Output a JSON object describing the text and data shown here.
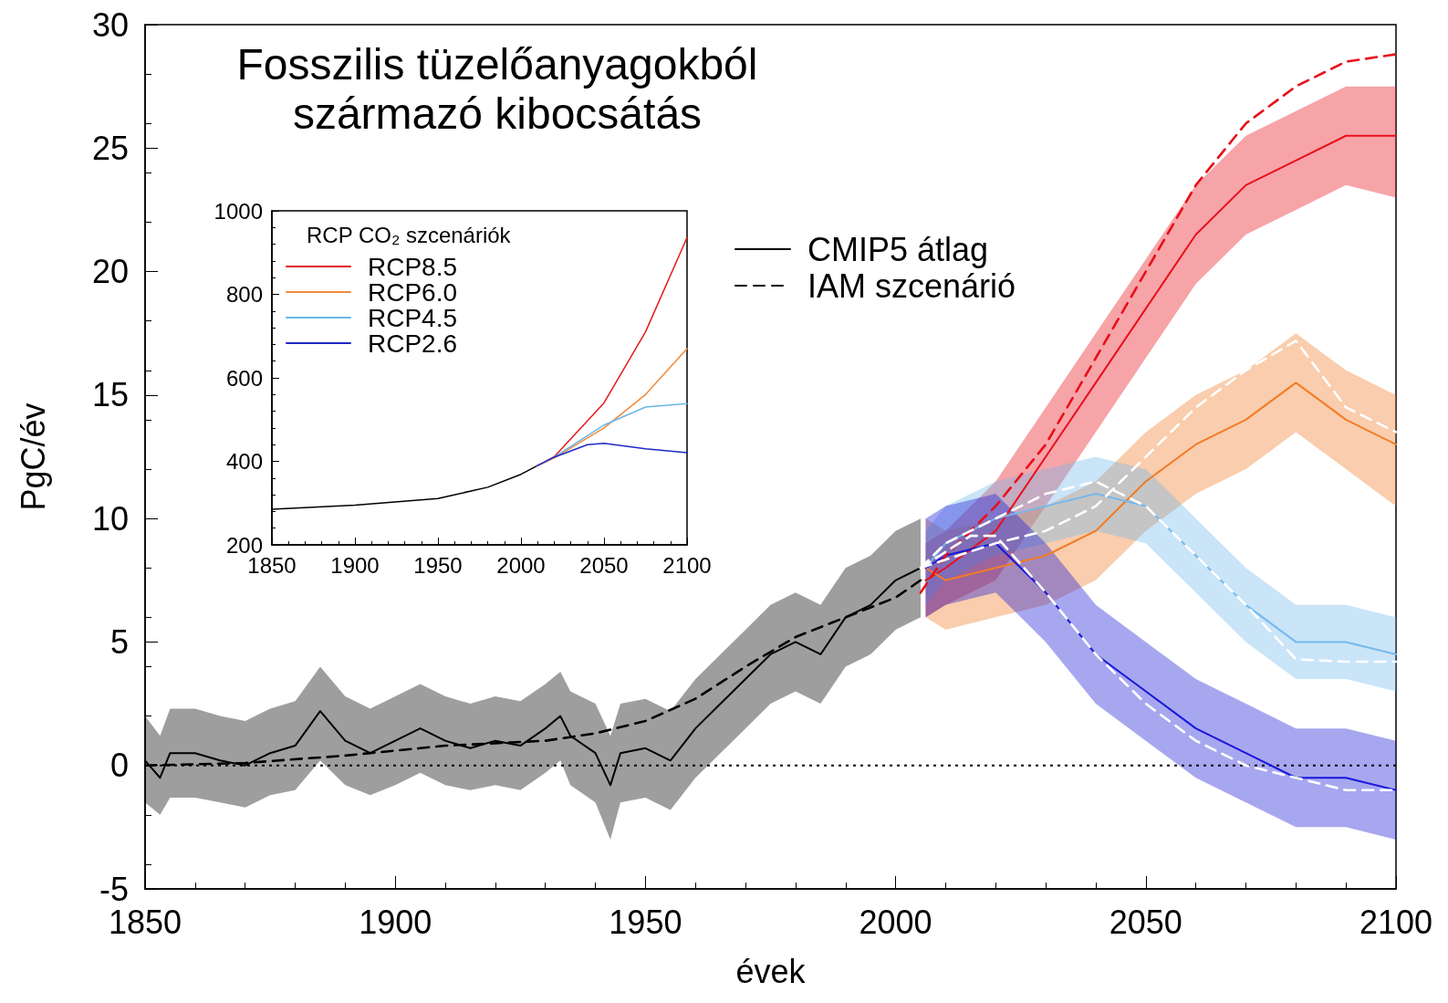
{
  "chart_data": [
    {
      "type": "line",
      "title": "Fosszilis tüzelőanyagokból\nszármazó kibocsátás",
      "xlabel": "évek",
      "ylabel": "PgC/év",
      "xlim": [
        1850,
        2100
      ],
      "xticks": [
        1850,
        1900,
        1950,
        2000,
        2050,
        2100
      ],
      "ylim": [
        -5,
        30
      ],
      "yticks": [
        -5,
        0,
        5,
        10,
        15,
        20,
        25,
        30
      ],
      "legend": "top",
      "marker": "none",
      "ref_lines": [
        {
          "axis": "y",
          "value": 0,
          "line_style": "dotted",
          "color": "#000000"
        }
      ],
      "series": [
        {
          "name": "CMIP5 átlag",
          "color": "#000000",
          "line_style": "solid",
          "x": [
            1850,
            1853,
            1855,
            1860,
            1865,
            1870,
            1875,
            1880,
            1885,
            1890,
            1895,
            1900,
            1905,
            1910,
            1915,
            1920,
            1925,
            1930,
            1933,
            1935,
            1940,
            1943,
            1945,
            1950,
            1955,
            1960,
            1965,
            1970,
            1975,
            1980,
            1985,
            1990,
            1995,
            2000,
            2005
          ],
          "values": [
            0.2,
            -0.5,
            0.5,
            0.5,
            0.2,
            0,
            0.5,
            0.8,
            2.2,
            1,
            0.5,
            1,
            1.5,
            1,
            0.7,
            1,
            0.8,
            1.5,
            2,
            1.2,
            0.5,
            -0.8,
            0.5,
            0.7,
            0.2,
            1.5,
            2.5,
            3.5,
            4.5,
            5,
            4.5,
            6,
            6.5,
            7.5,
            8
          ],
          "lower": [
            -1.5,
            -2,
            -1.3,
            -1.3,
            -1.5,
            -1.7,
            -1.2,
            -1,
            0.2,
            -0.8,
            -1.2,
            -0.8,
            -0.3,
            -0.8,
            -1,
            -0.8,
            -1,
            -0.3,
            0.2,
            -0.8,
            -1.5,
            -3,
            -1.5,
            -1.3,
            -1.8,
            -0.5,
            0.5,
            1.5,
            2.5,
            3,
            2.5,
            4,
            4.5,
            5.5,
            6
          ],
          "upper": [
            2,
            1.2,
            2.3,
            2.3,
            2,
            1.8,
            2.3,
            2.6,
            4,
            2.8,
            2.3,
            2.8,
            3.3,
            2.8,
            2.5,
            2.8,
            2.6,
            3.3,
            3.8,
            3,
            2.5,
            1.2,
            2.5,
            2.7,
            2.2,
            3.5,
            4.5,
            5.5,
            6.5,
            7,
            6.5,
            8,
            8.5,
            9.5,
            10
          ]
        },
        {
          "color": "#e8101a",
          "line_style": "solid",
          "x": [
            2006,
            2010,
            2020,
            2030,
            2040,
            2050,
            2060,
            2070,
            2080,
            2090,
            2100
          ],
          "values": [
            7.5,
            8,
            9.5,
            12.5,
            15.5,
            18.5,
            21.5,
            23.5,
            24.5,
            25.5,
            25.5
          ],
          "lower": [
            6,
            6.5,
            7.5,
            10.5,
            13.5,
            16.5,
            19.5,
            21.5,
            22.5,
            23.5,
            23
          ],
          "upper": [
            9,
            9.5,
            11.5,
            14.5,
            17.5,
            20.5,
            23.5,
            25.5,
            26.5,
            27.5,
            27.5
          ]
        },
        {
          "color": "#f07c28",
          "line_style": "solid",
          "x": [
            2006,
            2010,
            2020,
            2030,
            2040,
            2050,
            2060,
            2070,
            2080,
            2090,
            2100
          ],
          "values": [
            8,
            7.5,
            8,
            8.5,
            9.5,
            11.5,
            13,
            14,
            15.5,
            14,
            13
          ],
          "lower": [
            6,
            5.5,
            6,
            6.5,
            7.5,
            9.5,
            11,
            12,
            13.5,
            12,
            10.5
          ],
          "upper": [
            10,
            9.5,
            10,
            10.5,
            11.5,
            13.5,
            15,
            16,
            17.5,
            16,
            15
          ]
        },
        {
          "color": "#74b8ec",
          "line_style": "solid",
          "x": [
            2006,
            2010,
            2020,
            2030,
            2040,
            2050,
            2060,
            2070,
            2080,
            2090,
            2100
          ],
          "values": [
            8,
            9,
            10,
            10.5,
            11,
            10.5,
            8.5,
            6.5,
            5,
            5,
            4.5
          ],
          "lower": [
            6.5,
            7.5,
            8.5,
            9,
            9.5,
            9,
            7,
            5,
            3.5,
            3.5,
            3
          ],
          "upper": [
            9.5,
            10.5,
            11.5,
            12,
            12.5,
            12,
            10,
            8,
            6.5,
            6.5,
            6
          ]
        },
        {
          "color": "#1818d8",
          "line_style": "solid",
          "x": [
            2006,
            2010,
            2020,
            2025,
            2030,
            2040,
            2050,
            2060,
            2070,
            2080,
            2090,
            2100
          ],
          "values": [
            8,
            8.5,
            9,
            8,
            7,
            4.5,
            3,
            1.5,
            0.5,
            -0.5,
            -0.5,
            -1
          ],
          "lower": [
            6,
            6.5,
            7,
            6,
            5,
            2.5,
            1,
            -0.5,
            -1.5,
            -2.5,
            -2.5,
            -3
          ],
          "upper": [
            10,
            10.5,
            11,
            10,
            9,
            6.5,
            5,
            3.5,
            2.5,
            1.5,
            1.5,
            1
          ]
        },
        {
          "name": "IAM szcenárió",
          "color": "#000000",
          "line_style": "dashed",
          "x": [
            1850,
            1870,
            1890,
            1910,
            1930,
            1940,
            1950,
            1960,
            1970,
            1980,
            1990,
            2000,
            2005
          ],
          "values": [
            0,
            0.1,
            0.4,
            0.8,
            1,
            1.3,
            1.8,
            2.7,
            4,
            5.2,
            6,
            6.8,
            7.5
          ]
        },
        {
          "color": "#e8101a",
          "line_style": "dashed",
          "x": [
            2005,
            2010,
            2020,
            2030,
            2040,
            2050,
            2060,
            2070,
            2080,
            2090,
            2100
          ],
          "values": [
            7,
            8.5,
            10.5,
            13,
            16.5,
            20,
            23.5,
            26,
            27.5,
            28.5,
            28.8
          ]
        },
        {
          "color": "#ffffff",
          "line_style": "dashed",
          "x": [
            2005,
            2020,
            2030,
            2040,
            2050,
            2060,
            2070,
            2080,
            2090,
            2100
          ],
          "values": [
            8,
            9,
            9.5,
            10.5,
            12.5,
            14.5,
            16,
            17.2,
            14.5,
            13.5
          ]
        },
        {
          "color": "#ffffff",
          "line_style": "dashed",
          "x": [
            2005,
            2010,
            2020,
            2030,
            2040,
            2050,
            2060,
            2070,
            2080,
            2090,
            2100
          ],
          "values": [
            8,
            9,
            10,
            11,
            11.5,
            10.5,
            8.5,
            6.5,
            4.3,
            4.2,
            4.2
          ]
        },
        {
          "color": "#ffffff",
          "line_style": "dashed",
          "x": [
            2005,
            2015,
            2020,
            2030,
            2040,
            2050,
            2060,
            2070,
            2080,
            2090,
            2100
          ],
          "values": [
            8,
            9.3,
            9.3,
            7,
            4.5,
            2.5,
            1,
            0,
            -0.5,
            -1,
            -1
          ]
        }
      ]
    },
    {
      "type": "line",
      "legend_title": "RCP CO₂ szcenáriók",
      "legend": "top left",
      "marker": "none",
      "xlim": [
        1850,
        2100
      ],
      "xticks": [
        1850,
        1900,
        1950,
        2000,
        2050,
        2100
      ],
      "ylim": [
        200,
        1000
      ],
      "yticks": [
        200,
        400,
        600,
        800,
        1000
      ],
      "series": [
        {
          "color": "#000000",
          "x": [
            1850,
            1900,
            1950,
            1980,
            2000,
            2010
          ],
          "values": [
            285,
            295,
            311,
            338,
            369,
            390
          ]
        },
        {
          "name": "RCP8.5",
          "color": "#e31a1c",
          "x": [
            2010,
            2020,
            2050,
            2075,
            2100
          ],
          "values": [
            390,
            411,
            540,
            710,
            936
          ]
        },
        {
          "name": "RCP6.0",
          "color": "#f08a3c",
          "x": [
            2010,
            2020,
            2050,
            2075,
            2100
          ],
          "values": [
            390,
            408,
            480,
            560,
            670
          ]
        },
        {
          "name": "RCP4.5",
          "color": "#6ab8e8",
          "x": [
            2010,
            2020,
            2050,
            2075,
            2100
          ],
          "values": [
            390,
            410,
            487,
            530,
            538
          ]
        },
        {
          "name": "RCP2.6",
          "color": "#1f28c8",
          "x": [
            2010,
            2020,
            2040,
            2050,
            2075,
            2100
          ],
          "values": [
            390,
            410,
            440,
            443,
            430,
            421
          ]
        }
      ]
    }
  ]
}
